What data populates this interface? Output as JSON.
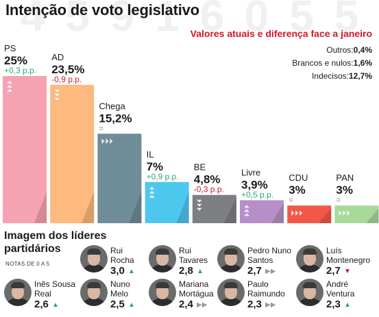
{
  "title": "Intenção de voto legislativo",
  "subtitle": "Valores atuais e diferença face a janeiro",
  "extras": [
    {
      "label": "Outros:",
      "value": "0,4%"
    },
    {
      "label": "Brancos e nulos:",
      "value": "1,6%"
    },
    {
      "label": "Indecisos:",
      "value": "12,7%"
    }
  ],
  "chart_data": {
    "type": "bar",
    "title": "Intenção de voto legislativo",
    "subtitle": "Valores atuais e diferença face a janeiro",
    "categories": [
      "PS",
      "AD",
      "Chega",
      "IL",
      "BE",
      "Livre",
      "CDU",
      "PAN"
    ],
    "values": [
      25,
      23.5,
      15.2,
      7,
      4.8,
      3.9,
      3,
      3
    ],
    "value_labels": [
      "25%",
      "23,5%",
      "15,2%",
      "7%",
      "4,8%",
      "3,9%",
      "3%",
      "3%"
    ],
    "changes": [
      "+0,3 p.p.",
      "-0,9 p.p.",
      "=",
      "+0,9 p.p.",
      "-0,3 p.p.",
      "+0,5 p.p.",
      "=",
      "="
    ],
    "directions": [
      "up",
      "down",
      "flat",
      "up",
      "down",
      "up",
      "flat",
      "flat"
    ],
    "colors": [
      "#f5a3b3",
      "#fdb97e",
      "#6f8d99",
      "#4ec7ef",
      "#7d7f82",
      "#b78fc8",
      "#f25848",
      "#a9d99a"
    ],
    "change_colors": {
      "up": "#2ea37e",
      "down": "#d0152a",
      "flat": "#8a8a8a"
    },
    "ylim": [
      0,
      25
    ],
    "xlabel": "",
    "ylabel": ""
  },
  "leaders": {
    "title": "Imagem dos líderes partidários",
    "note": "NOTAS DE 0 A 5",
    "items": [
      {
        "name": "Rui Rocha",
        "l1": "Rui",
        "l2": "Rocha",
        "score": "3,0",
        "trend": "up"
      },
      {
        "name": "Rui Tavares",
        "l1": "Rui",
        "l2": "Tavares",
        "score": "2,8",
        "trend": "up"
      },
      {
        "name": "Pedro Nuno Santos",
        "l1": "Pedro Nuno",
        "l2": "Santos",
        "score": "2,7",
        "trend": "flat"
      },
      {
        "name": "Luís Montenegro",
        "l1": "Luís",
        "l2": "Montenegro",
        "score": "2,7",
        "trend": "down"
      },
      {
        "name": "Inês Sousa Real",
        "l1": "Inês Sousa",
        "l2": "Real",
        "score": "2,6",
        "trend": "up"
      },
      {
        "name": "Nuno Melo",
        "l1": "Nuno",
        "l2": "Melo",
        "score": "2,5",
        "trend": "up"
      },
      {
        "name": "Mariana Mortágua",
        "l1": "Mariana",
        "l2": "Mortágua",
        "score": "2,4",
        "trend": "flat"
      },
      {
        "name": "Paulo Raimundo",
        "l1": "Paulo",
        "l2": "Raimundo",
        "score": "2,3",
        "trend": "flat"
      },
      {
        "name": "André Ventura",
        "l1": "André",
        "l2": "Ventura",
        "score": "2,3",
        "trend": "up"
      }
    ]
  }
}
